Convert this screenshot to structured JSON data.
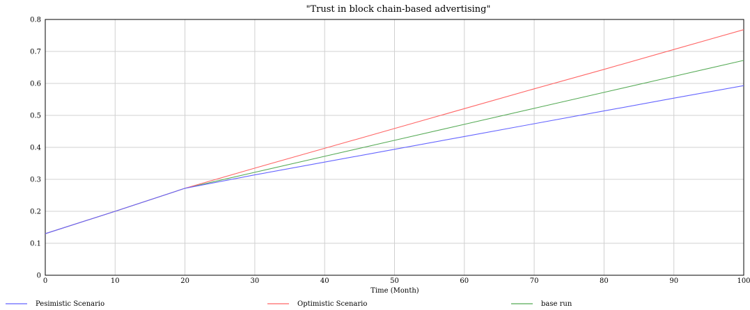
{
  "chart_data": {
    "type": "line",
    "title": "\"Trust in block chain-based advertising\"",
    "xlabel": "Time (Month)",
    "ylabel": "",
    "xlim": [
      0,
      100
    ],
    "ylim": [
      0,
      0.8
    ],
    "x_ticks": [
      "0",
      "10",
      "20",
      "30",
      "40",
      "50",
      "60",
      "70",
      "80",
      "90",
      "100"
    ],
    "y_ticks": [
      "0",
      "0.1",
      "0.2",
      "0.3",
      "0.4",
      "0.5",
      "0.6",
      "0.7",
      "0.8"
    ],
    "grid": true,
    "legend_position": "bottom",
    "x": [
      0,
      10,
      20,
      30,
      40,
      50,
      60,
      70,
      80,
      90,
      100
    ],
    "series": [
      {
        "name": "Pesimistic Scenario",
        "color": "#6464ff",
        "values": [
          0.13,
          0.2,
          0.272,
          0.314,
          0.354,
          0.394,
          0.434,
          0.474,
          0.514,
          0.554,
          0.593
        ]
      },
      {
        "name": "Optimistic Scenario",
        "color": "#ff6666",
        "values": [
          0.13,
          0.2,
          0.272,
          0.335,
          0.397,
          0.459,
          0.521,
          0.583,
          0.644,
          0.706,
          0.768
        ]
      },
      {
        "name": "base run",
        "color": "#55aa55",
        "values": [
          0.13,
          0.2,
          0.272,
          0.322,
          0.372,
          0.422,
          0.472,
          0.522,
          0.572,
          0.622,
          0.672
        ]
      }
    ]
  }
}
